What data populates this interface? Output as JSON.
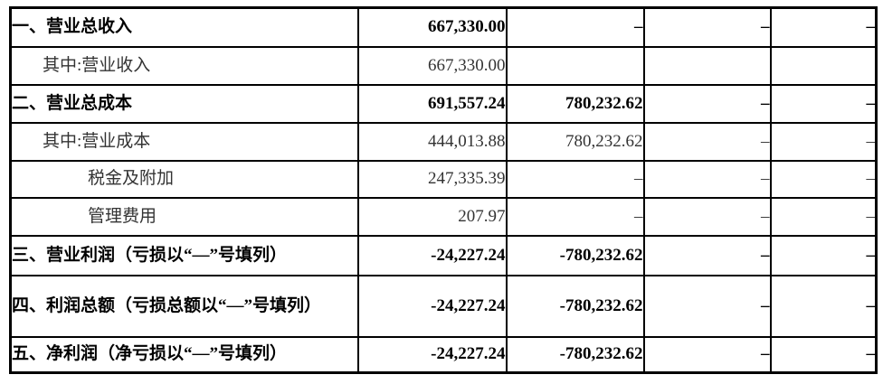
{
  "colors": {
    "border": "#000000",
    "text_bold": "#000000",
    "text_regular": "#333333",
    "background": "#ffffff"
  },
  "table": {
    "description": "income-statement-fragment",
    "rows": [
      {
        "label": "一、营业总收入",
        "indent": 0,
        "bold": true,
        "values": [
          "667,330.00",
          "–",
          "–",
          "–"
        ]
      },
      {
        "label": "其中:营业收入",
        "indent": 1,
        "bold": false,
        "values": [
          "667,330.00",
          "",
          "",
          ""
        ]
      },
      {
        "label": "二、营业总成本",
        "indent": 0,
        "bold": true,
        "values": [
          "691,557.24",
          "780,232.62",
          "–",
          "–"
        ]
      },
      {
        "label": "其中:营业成本",
        "indent": 1,
        "bold": false,
        "values": [
          "444,013.88",
          "780,232.62",
          "–",
          "–"
        ]
      },
      {
        "label": "税金及附加",
        "indent": 2,
        "bold": false,
        "values": [
          "247,335.39",
          "–",
          "–",
          "–"
        ]
      },
      {
        "label": "管理费用",
        "indent": 2,
        "bold": false,
        "values": [
          "207.97",
          "–",
          "–",
          "–"
        ]
      },
      {
        "label": "三、营业利润（亏损以“—”号填列）",
        "indent": 0,
        "bold": true,
        "values": [
          "-24,227.24",
          "-780,232.62",
          "–",
          "–"
        ]
      },
      {
        "label": "四、利润总额（亏损总额以“—”号填列）",
        "indent": 0,
        "bold": true,
        "values": [
          "-24,227.24",
          "-780,232.62",
          "–",
          "–"
        ]
      },
      {
        "label": "五、净利润（净亏损以“—”号填列）",
        "indent": 0,
        "bold": true,
        "values": [
          "-24,227.24",
          "-780,232.62",
          "–",
          "–"
        ]
      }
    ]
  }
}
